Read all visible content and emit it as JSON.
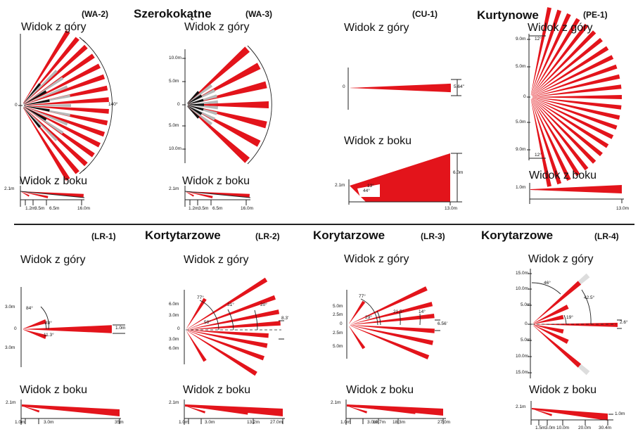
{
  "top_view_label": "Widok z góry",
  "side_view_label": "Widok z boku",
  "categories": {
    "wide": "Szerokokątne",
    "curtain": "Kurtynowe",
    "corridor_lr2": "Kortytarzowe",
    "corridor_lr3": "Korytarzowe",
    "corridor_lr4": "Korytarzowe"
  },
  "colors": {
    "beam": "#e3141b",
    "dead_zone": "#b8b8b8",
    "axis": "#222222"
  },
  "panels": [
    {
      "code": "(WA-2)",
      "top_view": {
        "center_label": "0",
        "angle_label": "140°"
      },
      "side_view": {
        "height_label": "2.1m",
        "distances": [
          "1.2m",
          "3.5m",
          "6.5m",
          "16.0m"
        ]
      }
    },
    {
      "code": "(WA-3)",
      "top_view": {
        "y_labels": [
          "10.0m",
          "5.0m",
          "0",
          "5.0m",
          "10.0m"
        ]
      },
      "side_view": {
        "height_label": "2.1m",
        "distances": [
          "1.2m",
          "3.5m",
          "6.5m",
          "16.0m"
        ]
      }
    },
    {
      "code": "(CU-1)",
      "top_view": {
        "center_label": "0",
        "width_label": "5.64\""
      },
      "side_view": {
        "height_label": "2.1m",
        "angles": [
          "13°",
          "44°"
        ],
        "height_right_label": "6.0m",
        "distances": [
          "13.0m"
        ]
      }
    },
    {
      "code": "(PE-1)",
      "top_view": {
        "y_labels": [
          "9.0m",
          "5.0m",
          "0",
          "5.0m",
          "9.0m"
        ],
        "angle_labels": [
          "12°",
          "12°"
        ]
      },
      "side_view": {
        "height_label": "1.0m",
        "distances": [
          "13.0m"
        ]
      }
    },
    {
      "code": "(LR-1)",
      "top_view": {
        "y_labels": [
          "3.0m",
          "0",
          "3.0m"
        ],
        "angle_labels": [
          "84°",
          "28°",
          "11.3°"
        ],
        "width_label": "1.0m"
      },
      "side_view": {
        "height_label": "2.1m",
        "distances": [
          "1.0m",
          "3.0m",
          "35m"
        ]
      }
    },
    {
      "code": "(LR-2)",
      "top_view": {
        "y_labels": [
          "6.0m",
          "3.0m",
          "0",
          "3.0m",
          "6.0m"
        ],
        "angle_labels": [
          "77°",
          "31°",
          "20°",
          "58°"
        ],
        "width_label": "8.3'"
      },
      "side_view": {
        "height_label": "2.1m",
        "distances": [
          "1.0m",
          "3.0m",
          "13.2m",
          "27.0m"
        ]
      }
    },
    {
      "code": "(LR-3)",
      "top_view": {
        "y_labels": [
          "5.0m",
          "2.5m",
          "0",
          "2.5m",
          "5.0m"
        ],
        "angle_labels": [
          "77°",
          "29°",
          "21.5°",
          "14°"
        ],
        "width_label": "6.56'"
      },
      "side_view": {
        "height_label": "2.1m",
        "distances": [
          "1.0m",
          "3.0m",
          "10.7m",
          "18.3m",
          "27.0m"
        ]
      }
    },
    {
      "code": "(LR-4)",
      "top_view": {
        "y_labels": [
          "15.0m",
          "10.0m",
          "5.0m",
          "0",
          "5.0m",
          "10.0m",
          "15.0m"
        ],
        "angle_labels": [
          "46°",
          "42.5°",
          "19°",
          "2.6°"
        ]
      },
      "side_view": {
        "height_label": "2.1m",
        "distances": [
          "1.5m",
          "3.0m",
          "10.0m",
          "20.0m",
          "30.4m"
        ],
        "height_right_label": "1.0m"
      }
    }
  ]
}
